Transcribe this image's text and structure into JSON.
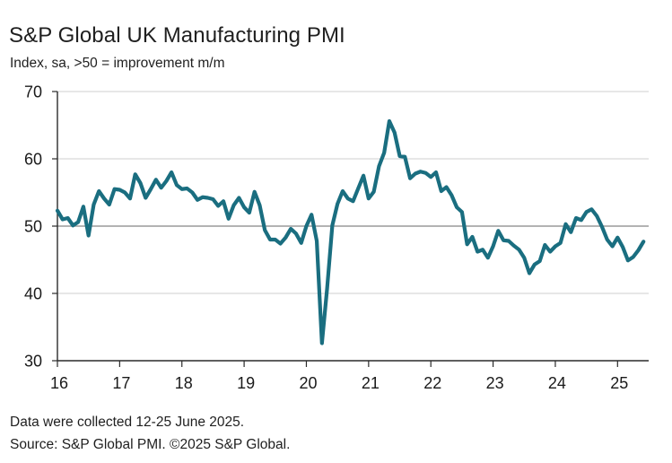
{
  "chart_data": {
    "type": "line",
    "title": "S&P Global UK Manufacturing PMI",
    "subtitle": "Index, sa, >50 = improvement m/m",
    "xlabel": "",
    "ylabel": "",
    "ylim": [
      30,
      70
    ],
    "y_ticks": [
      30,
      40,
      50,
      60,
      70
    ],
    "x_range": [
      2016.0,
      2025.5
    ],
    "x_ticks": [
      {
        "x": 2016,
        "label": "16"
      },
      {
        "x": 2017,
        "label": "17"
      },
      {
        "x": 2018,
        "label": "18"
      },
      {
        "x": 2019,
        "label": "19"
      },
      {
        "x": 2020,
        "label": "20"
      },
      {
        "x": 2021,
        "label": "21"
      },
      {
        "x": 2022,
        "label": "22"
      },
      {
        "x": 2023,
        "label": "23"
      },
      {
        "x": 2024,
        "label": "24"
      },
      {
        "x": 2025,
        "label": "25"
      }
    ],
    "reference_line": 50,
    "grid": "horizontal",
    "line_color": "#1a6e80",
    "series": [
      {
        "x": [
          2016.0,
          2016.083,
          2016.167,
          2016.25,
          2016.333,
          2016.417,
          2016.5,
          2016.583,
          2016.667,
          2016.75,
          2016.833,
          2016.917,
          2017.0,
          2017.083,
          2017.167,
          2017.25,
          2017.333,
          2017.417,
          2017.5,
          2017.583,
          2017.667,
          2017.75,
          2017.833,
          2017.917,
          2018.0,
          2018.083,
          2018.167,
          2018.25,
          2018.333,
          2018.417,
          2018.5,
          2018.583,
          2018.667,
          2018.75,
          2018.833,
          2018.917,
          2019.0,
          2019.083,
          2019.167,
          2019.25,
          2019.333,
          2019.417,
          2019.5,
          2019.583,
          2019.667,
          2019.75,
          2019.833,
          2019.917,
          2020.0,
          2020.083,
          2020.167,
          2020.25,
          2020.333,
          2020.417,
          2020.5,
          2020.583,
          2020.667,
          2020.75,
          2020.833,
          2020.917,
          2021.0,
          2021.083,
          2021.167,
          2021.25,
          2021.333,
          2021.417,
          2021.5,
          2021.583,
          2021.667,
          2021.75,
          2021.833,
          2021.917,
          2022.0,
          2022.083,
          2022.167,
          2022.25,
          2022.333,
          2022.417,
          2022.5,
          2022.583,
          2022.667,
          2022.75,
          2022.833,
          2022.917,
          2023.0,
          2023.083,
          2023.167,
          2023.25,
          2023.333,
          2023.417,
          2023.5,
          2023.583,
          2023.667,
          2023.75,
          2023.833,
          2023.917,
          2024.0,
          2024.083,
          2024.167,
          2024.25,
          2024.333,
          2024.417,
          2024.5,
          2024.583,
          2024.667,
          2024.75,
          2024.833,
          2024.917,
          2025.0,
          2025.083,
          2025.167,
          2025.25,
          2025.333,
          2025.417
        ],
        "values": [
          52.3,
          51.0,
          51.2,
          50.1,
          50.6,
          52.9,
          48.6,
          53.2,
          55.2,
          54.1,
          53.2,
          55.5,
          55.4,
          55.0,
          54.1,
          57.7,
          56.4,
          54.2,
          55.5,
          56.9,
          55.7,
          56.7,
          58.0,
          56.1,
          55.5,
          55.6,
          55.0,
          53.9,
          54.3,
          54.2,
          54.0,
          53.0,
          53.7,
          51.1,
          53.1,
          54.2,
          52.8,
          52.0,
          55.1,
          53.1,
          49.4,
          48.0,
          48.0,
          47.4,
          48.3,
          49.6,
          48.9,
          47.5,
          50.0,
          51.7,
          47.8,
          32.6,
          40.7,
          50.1,
          53.3,
          55.2,
          54.1,
          53.7,
          55.6,
          57.5,
          54.1,
          55.1,
          58.9,
          60.9,
          65.6,
          63.9,
          60.4,
          60.3,
          57.1,
          57.8,
          58.1,
          57.9,
          57.3,
          58.0,
          55.2,
          55.8,
          54.6,
          52.8,
          52.1,
          47.3,
          48.4,
          46.2,
          46.5,
          45.3,
          47.0,
          49.3,
          47.9,
          47.8,
          47.1,
          46.5,
          45.3,
          43.0,
          44.3,
          44.8,
          47.2,
          46.2,
          47.0,
          47.5,
          50.3,
          49.1,
          51.2,
          50.9,
          52.1,
          52.5,
          51.5,
          49.9,
          48.0,
          47.0,
          48.3,
          46.9,
          44.9,
          45.4,
          46.4,
          47.7
        ]
      }
    ],
    "notes": {
      "collection": "Data were collected 12-25 June 2025.",
      "source": "Source: S&P Global PMI. ©2025 S&P Global."
    }
  }
}
